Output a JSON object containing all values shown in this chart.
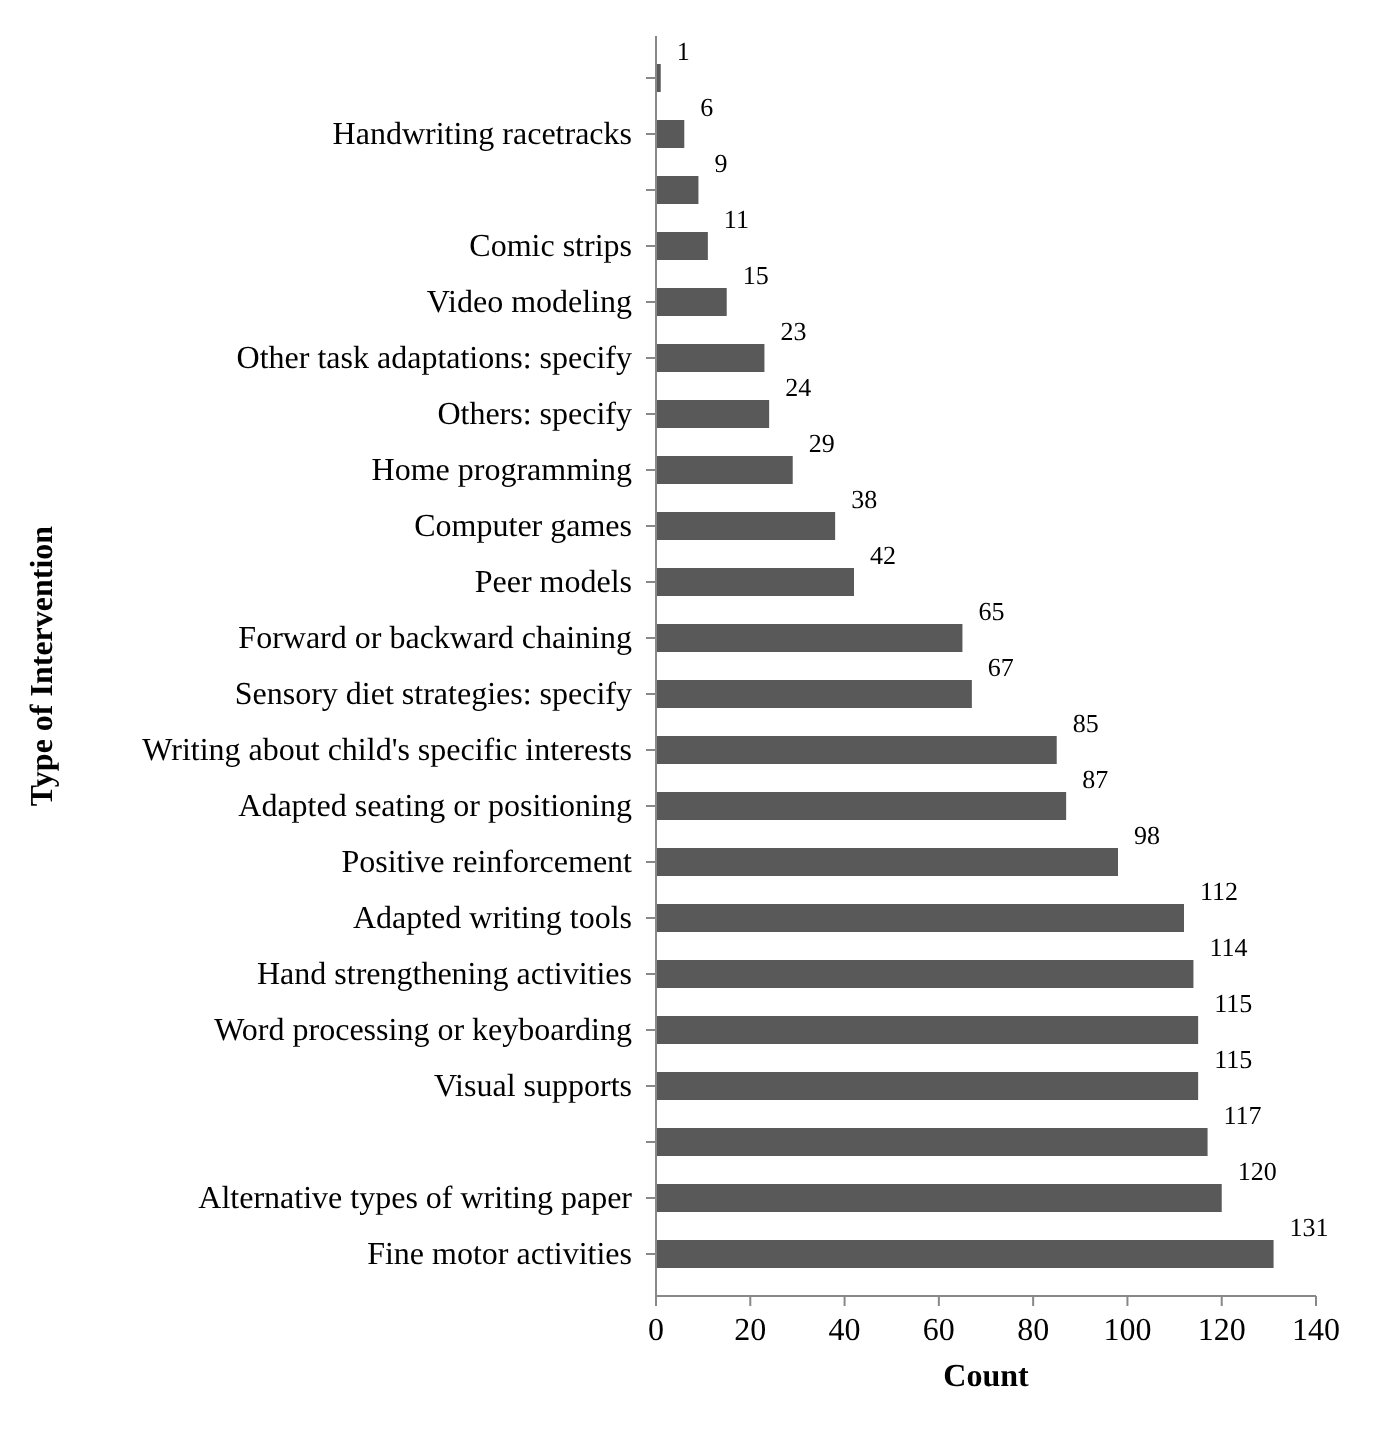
{
  "chart_data": {
    "type": "bar",
    "orientation": "horizontal",
    "xlabel": "Count",
    "ylabel": "Type of Intervention",
    "categories": [
      null,
      "Handwriting racetracks",
      null,
      "Comic strips",
      "Video modeling",
      "Other task adaptations: specify",
      "Others: specify",
      "Home programming",
      "Computer games",
      "Peer models",
      "Forward or backward chaining",
      "Sensory diet strategies: specify",
      "Writing about child's specific interests",
      "Adapted seating or positioning",
      "Positive reinforcement",
      "Adapted writing tools",
      "Hand strengthening activities",
      "Word processing or keyboarding",
      "Visual supports",
      null,
      "Alternative types of writing paper",
      "Fine motor activities"
    ],
    "values": [
      1,
      6,
      9,
      11,
      15,
      23,
      24,
      29,
      38,
      42,
      65,
      67,
      85,
      87,
      98,
      112,
      114,
      115,
      115,
      117,
      120,
      131
    ],
    "color": "#595959",
    "xlim": [
      0,
      140
    ],
    "xticks": [
      0,
      20,
      40,
      60,
      80,
      100,
      120,
      140
    ],
    "data_labels": true,
    "grid": false
  }
}
